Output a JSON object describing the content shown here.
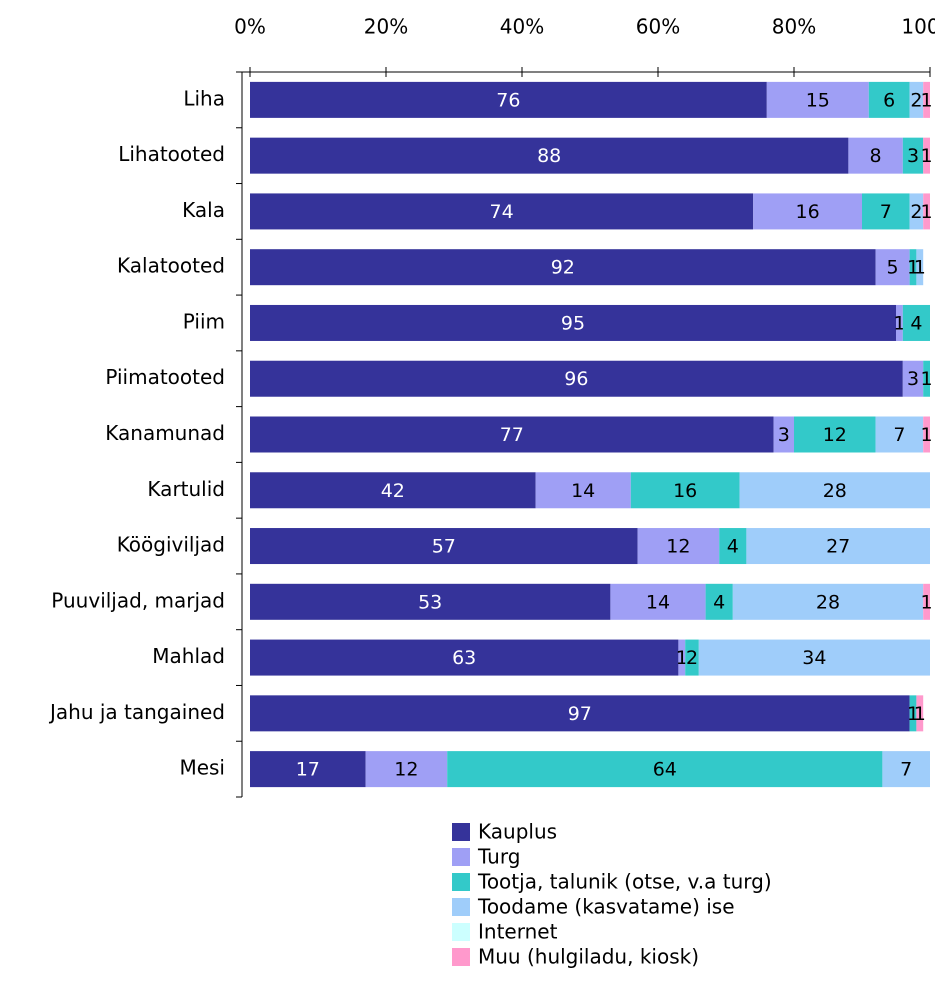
{
  "chart_data": {
    "type": "stacked-bar-horizontal",
    "categories": [
      "Liha",
      "Lihatooted",
      "Kala",
      "Kalatooted",
      "Piim",
      "Piimatooted",
      "Kanamunad",
      "Kartulid",
      "Köögiviljad",
      "Puuviljad, marjad",
      "Mahlad",
      "Jahu ja tangained",
      "Mesi"
    ],
    "series": [
      {
        "name": "Kauplus",
        "color": "#35339a",
        "values": [
          76,
          88,
          74,
          92,
          95,
          96,
          77,
          42,
          57,
          53,
          63,
          97,
          17
        ]
      },
      {
        "name": "Turg",
        "color": "#9f9ff5",
        "values": [
          15,
          8,
          16,
          5,
          1,
          3,
          3,
          14,
          12,
          14,
          1,
          null,
          12
        ]
      },
      {
        "name": "Tootja, talunik (otse, v.a turg)",
        "color": "#33c9c9",
        "values": [
          6,
          3,
          7,
          1,
          4,
          1,
          12,
          16,
          4,
          4,
          2,
          1,
          64
        ]
      },
      {
        "name": "Toodame (kasvatame) ise",
        "color": "#9fcdfa",
        "values": [
          2,
          null,
          2,
          1,
          null,
          null,
          7,
          28,
          27,
          28,
          34,
          null,
          7
        ]
      },
      {
        "name": "Internet",
        "color": "#ccffff",
        "values": [
          null,
          null,
          null,
          null,
          null,
          null,
          null,
          null,
          null,
          null,
          null,
          null,
          null
        ]
      },
      {
        "name": "Muu (hulgiladu, kiosk)",
        "color": "#ff99cc",
        "values": [
          1,
          1,
          1,
          null,
          null,
          null,
          1,
          null,
          null,
          1,
          null,
          1,
          null
        ]
      }
    ],
    "xlim": [
      0,
      100
    ],
    "xticks": [
      {
        "value": 0,
        "label": "0%"
      },
      {
        "value": 20,
        "label": "20%"
      },
      {
        "value": 40,
        "label": "40%"
      },
      {
        "value": 60,
        "label": "60%"
      },
      {
        "value": 80,
        "label": "80%"
      },
      {
        "value": 100,
        "label": "100%"
      }
    ],
    "legend": "bottom"
  }
}
